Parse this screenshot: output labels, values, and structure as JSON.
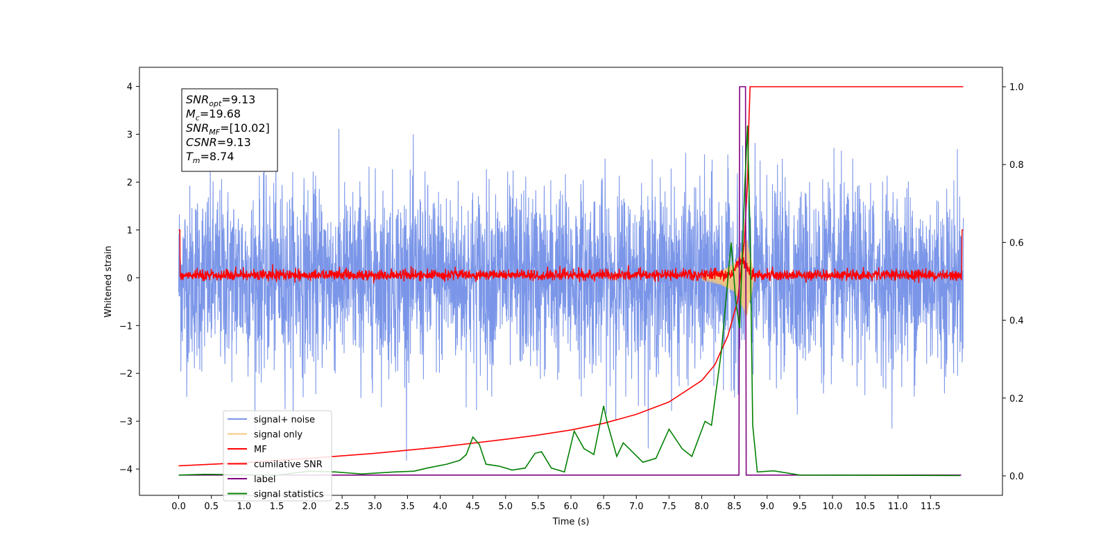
{
  "chart_data": {
    "type": "line",
    "title": "",
    "xlabel": "Time (s)",
    "ylabel": "Whitened strain",
    "xlim": [
      -0.6,
      12.6
    ],
    "ylim": [
      -4.55,
      4.4
    ],
    "y2lim": [
      -0.05,
      1.05
    ],
    "x_ticks": [
      "0.0",
      "0.5",
      "1.0",
      "1.5",
      "2.0",
      "2.5",
      "3.0",
      "3.5",
      "4.0",
      "4.5",
      "5.0",
      "5.5",
      "6.0",
      "6.5",
      "7.0",
      "7.5",
      "8.0",
      "8.5",
      "9.0",
      "9.5",
      "10.0",
      "10.5",
      "11.0",
      "11.5"
    ],
    "y_ticks": [
      "4",
      "3",
      "2",
      "1",
      "0",
      "−1",
      "−2",
      "−3",
      "−4"
    ],
    "y2_ticks": [
      "1.0",
      "0.8",
      "0.6",
      "0.4",
      "0.2",
      "0.0"
    ],
    "grid": false,
    "legend_position": "lower-left",
    "annotation": {
      "lines": [
        {
          "sym": "SNR",
          "sub": "opt",
          "text": "=9.13"
        },
        {
          "sym": "M",
          "sub": "c",
          "text": "=19.68"
        },
        {
          "sym": "SNR",
          "sub": "MF",
          "text": "=[10.02]"
        },
        {
          "sym": "CSNR",
          "sub": "",
          "text": "=9.13"
        },
        {
          "sym": "T",
          "sub": "m",
          "text": "=8.74"
        }
      ]
    },
    "noise_envelope": {
      "upper": 2.5,
      "lower": -2.5
    },
    "series": [
      {
        "name": "signal+ noise",
        "color": "#7b96e8",
        "axis": "left",
        "style": "noisy",
        "x_range": [
          0.0,
          12.0
        ]
      },
      {
        "name": "signal only",
        "color": "#f5c87a",
        "axis": "left",
        "style": "chirp",
        "points": [
          [
            8.0,
            0.05
          ],
          [
            8.3,
            0.15
          ],
          [
            8.5,
            0.3
          ],
          [
            8.6,
            0.55
          ],
          [
            8.68,
            0.85
          ],
          [
            8.74,
            0.6
          ],
          [
            8.8,
            0.0
          ]
        ]
      },
      {
        "name": "MF",
        "color": "#ff0000",
        "axis": "left",
        "style": "noisy-small",
        "x_range": [
          0.0,
          12.0
        ]
      },
      {
        "name": "cumilative SNR",
        "color": "#ff0000",
        "axis": "right",
        "points": [
          [
            0.0,
            0.026
          ],
          [
            1,
            0.034
          ],
          [
            2,
            0.045
          ],
          [
            3,
            0.058
          ],
          [
            4,
            0.074
          ],
          [
            5,
            0.094
          ],
          [
            5.5,
            0.105
          ],
          [
            6,
            0.118
          ],
          [
            6.5,
            0.135
          ],
          [
            7,
            0.158
          ],
          [
            7.5,
            0.19
          ],
          [
            8,
            0.245
          ],
          [
            8.2,
            0.285
          ],
          [
            8.4,
            0.36
          ],
          [
            8.55,
            0.45
          ],
          [
            8.65,
            0.6
          ],
          [
            8.7,
            0.75
          ],
          [
            8.72,
            0.9
          ],
          [
            8.74,
            1.0
          ],
          [
            12.0,
            1.0
          ]
        ]
      },
      {
        "name": "label",
        "color": "#800080",
        "axis": "right",
        "points": [
          [
            0.0,
            0.002
          ],
          [
            8.57,
            0.002
          ],
          [
            8.58,
            1.0
          ],
          [
            8.67,
            1.0
          ],
          [
            8.68,
            0.002
          ],
          [
            11.97,
            0.002
          ]
        ]
      },
      {
        "name": "signal statistics",
        "color": "#008000",
        "axis": "right",
        "points": [
          [
            0.0,
            0.002
          ],
          [
            0.4,
            0.004
          ],
          [
            1.0,
            0.003
          ],
          [
            1.5,
            0.002
          ],
          [
            2.0,
            0.012
          ],
          [
            2.4,
            0.01
          ],
          [
            2.8,
            0.005
          ],
          [
            3.3,
            0.01
          ],
          [
            3.6,
            0.012
          ],
          [
            3.8,
            0.02
          ],
          [
            4.1,
            0.03
          ],
          [
            4.3,
            0.04
          ],
          [
            4.4,
            0.055
          ],
          [
            4.5,
            0.1
          ],
          [
            4.6,
            0.08
          ],
          [
            4.7,
            0.03
          ],
          [
            4.9,
            0.025
          ],
          [
            5.1,
            0.015
          ],
          [
            5.3,
            0.02
          ],
          [
            5.45,
            0.058
          ],
          [
            5.55,
            0.062
          ],
          [
            5.7,
            0.02
          ],
          [
            5.9,
            0.01
          ],
          [
            6.05,
            0.115
          ],
          [
            6.2,
            0.07
          ],
          [
            6.35,
            0.055
          ],
          [
            6.5,
            0.18
          ],
          [
            6.55,
            0.14
          ],
          [
            6.7,
            0.05
          ],
          [
            6.8,
            0.085
          ],
          [
            7.1,
            0.035
          ],
          [
            7.3,
            0.045
          ],
          [
            7.5,
            0.12
          ],
          [
            7.7,
            0.07
          ],
          [
            7.85,
            0.05
          ],
          [
            8.05,
            0.14
          ],
          [
            8.15,
            0.13
          ],
          [
            8.3,
            0.32
          ],
          [
            8.45,
            0.6
          ],
          [
            8.52,
            0.45
          ],
          [
            8.58,
            0.38
          ],
          [
            8.66,
            0.75
          ],
          [
            8.7,
            0.9
          ],
          [
            8.74,
            0.62
          ],
          [
            8.78,
            0.13
          ],
          [
            8.85,
            0.01
          ],
          [
            9.1,
            0.013
          ],
          [
            9.5,
            0.002
          ],
          [
            11.95,
            0.001
          ]
        ]
      }
    ]
  }
}
